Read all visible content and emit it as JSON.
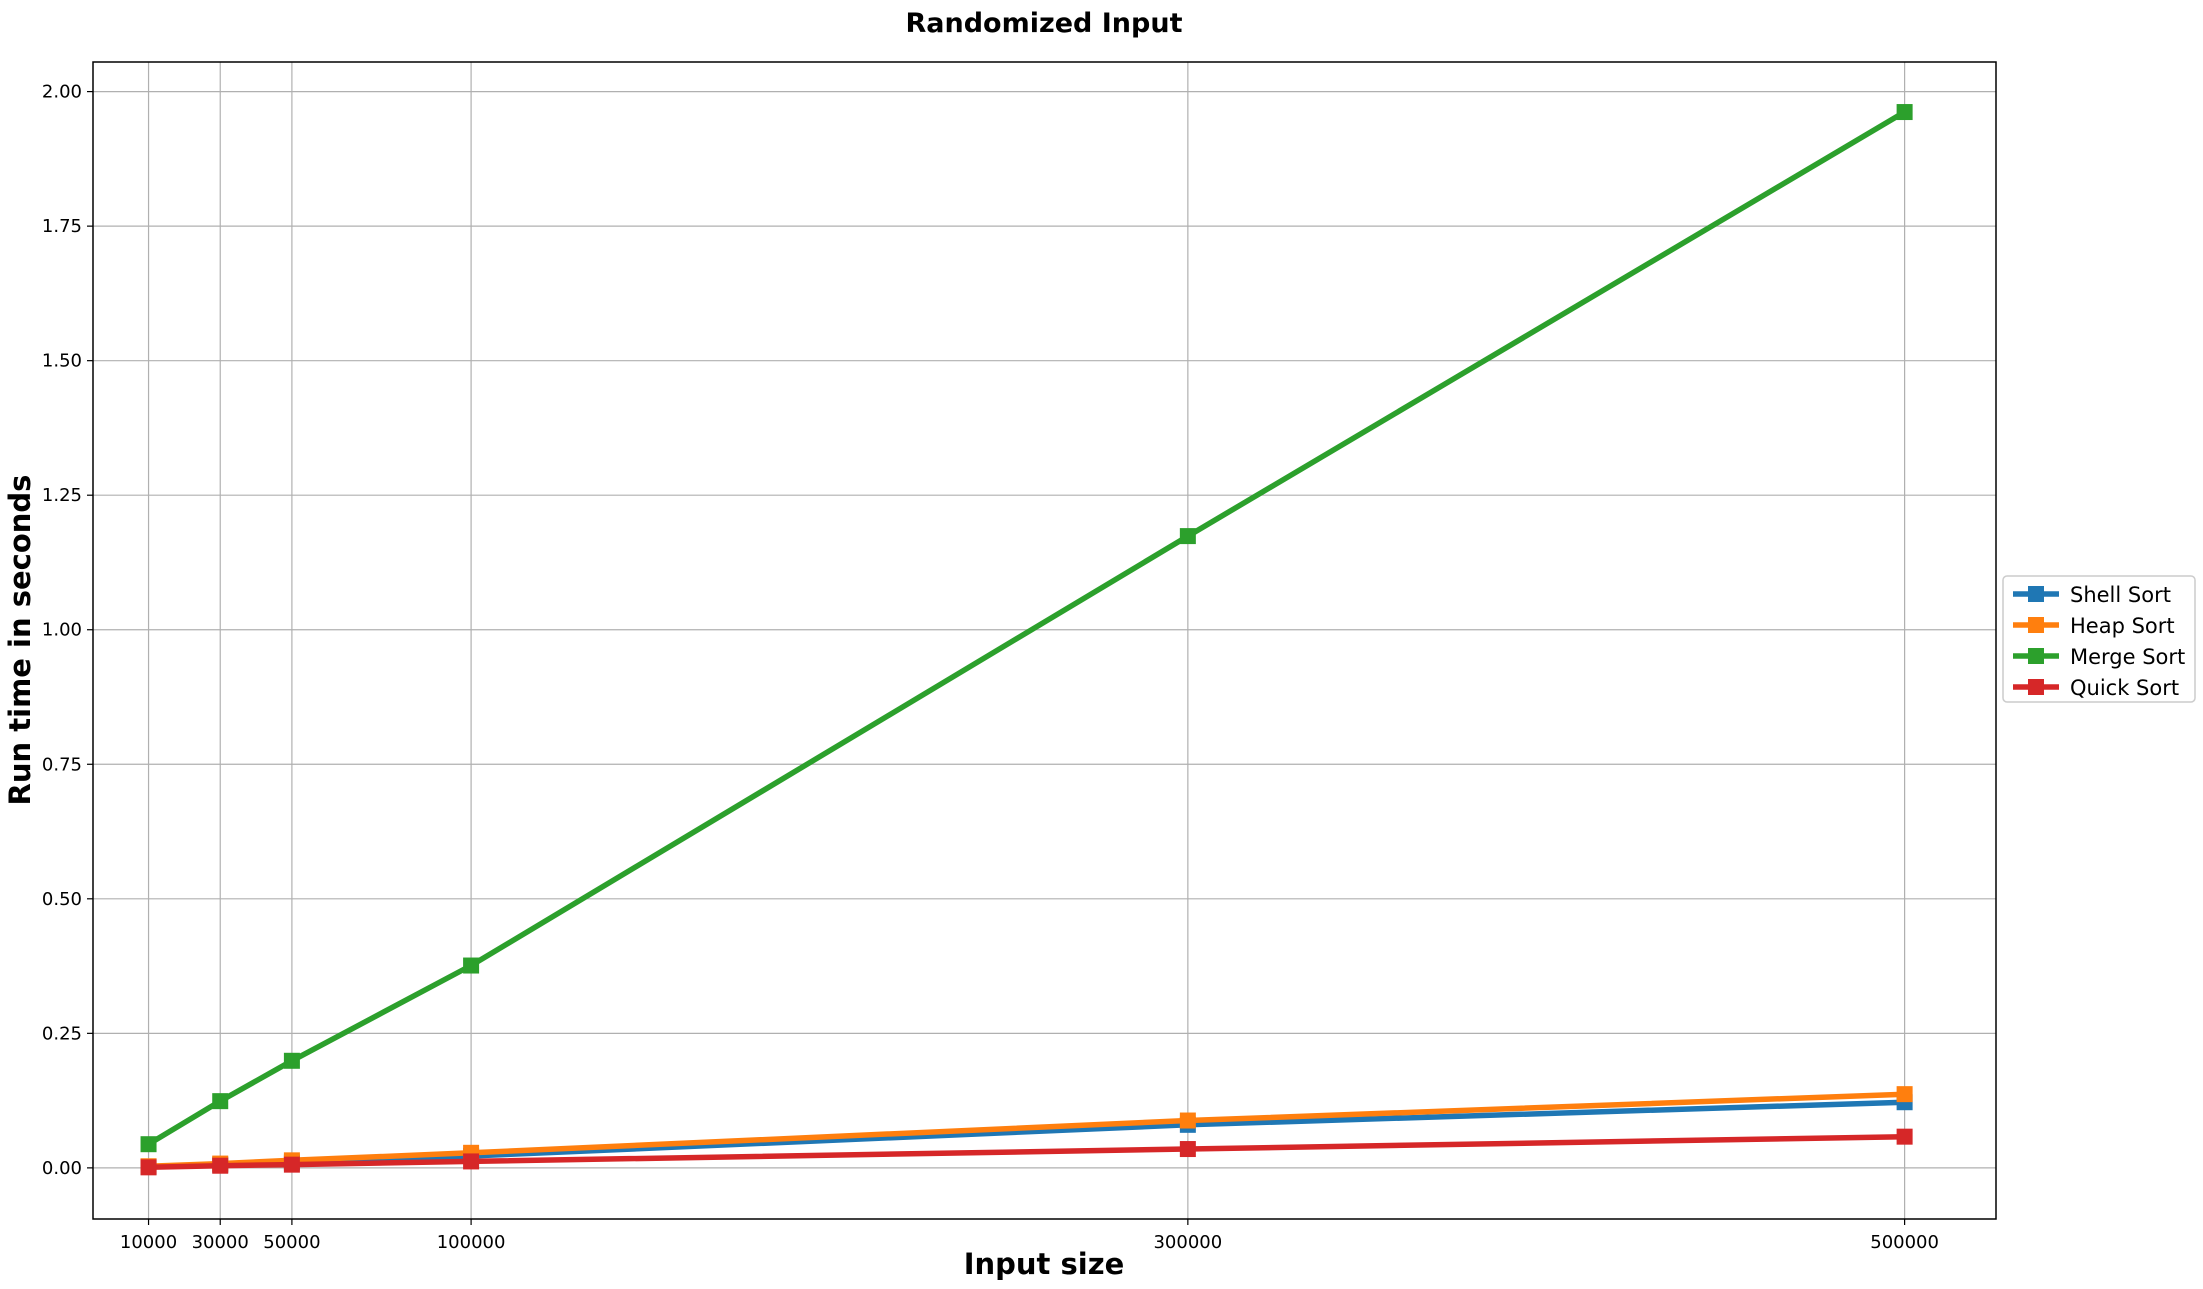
{
  "chart_data": {
    "type": "line",
    "title": "Randomized Input",
    "xlabel": "Input size",
    "ylabel": "Run time in seconds",
    "x": [
      10000,
      30000,
      50000,
      100000,
      300000,
      500000
    ],
    "x_tick_labels": [
      "10000",
      "30000",
      "50000",
      "100000",
      "300000",
      "500000"
    ],
    "xlim": [
      -5500,
      525500
    ],
    "ylim": [
      -0.095,
      2.055
    ],
    "y_ticks": [
      0.0,
      0.25,
      0.5,
      0.75,
      1.0,
      1.25,
      1.5,
      1.75,
      2.0
    ],
    "y_tick_labels": [
      "0.00",
      "0.25",
      "0.50",
      "0.75",
      "1.00",
      "1.25",
      "1.50",
      "1.75",
      "2.00"
    ],
    "grid": true,
    "legend_position": "outside-right",
    "marker": "square",
    "series": [
      {
        "name": "Shell Sort",
        "color": "#1f77b4",
        "values": [
          0.002,
          0.006,
          0.01,
          0.022,
          0.08,
          0.122
        ]
      },
      {
        "name": "Heap Sort",
        "color": "#ff7f0e",
        "values": [
          0.003,
          0.008,
          0.014,
          0.028,
          0.088,
          0.137
        ]
      },
      {
        "name": "Merge Sort",
        "color": "#2ca02c",
        "values": [
          0.044,
          0.124,
          0.199,
          0.376,
          1.174,
          1.962
        ]
      },
      {
        "name": "Quick Sort",
        "color": "#d62728",
        "values": [
          0.001,
          0.004,
          0.006,
          0.012,
          0.035,
          0.058
        ]
      }
    ]
  }
}
